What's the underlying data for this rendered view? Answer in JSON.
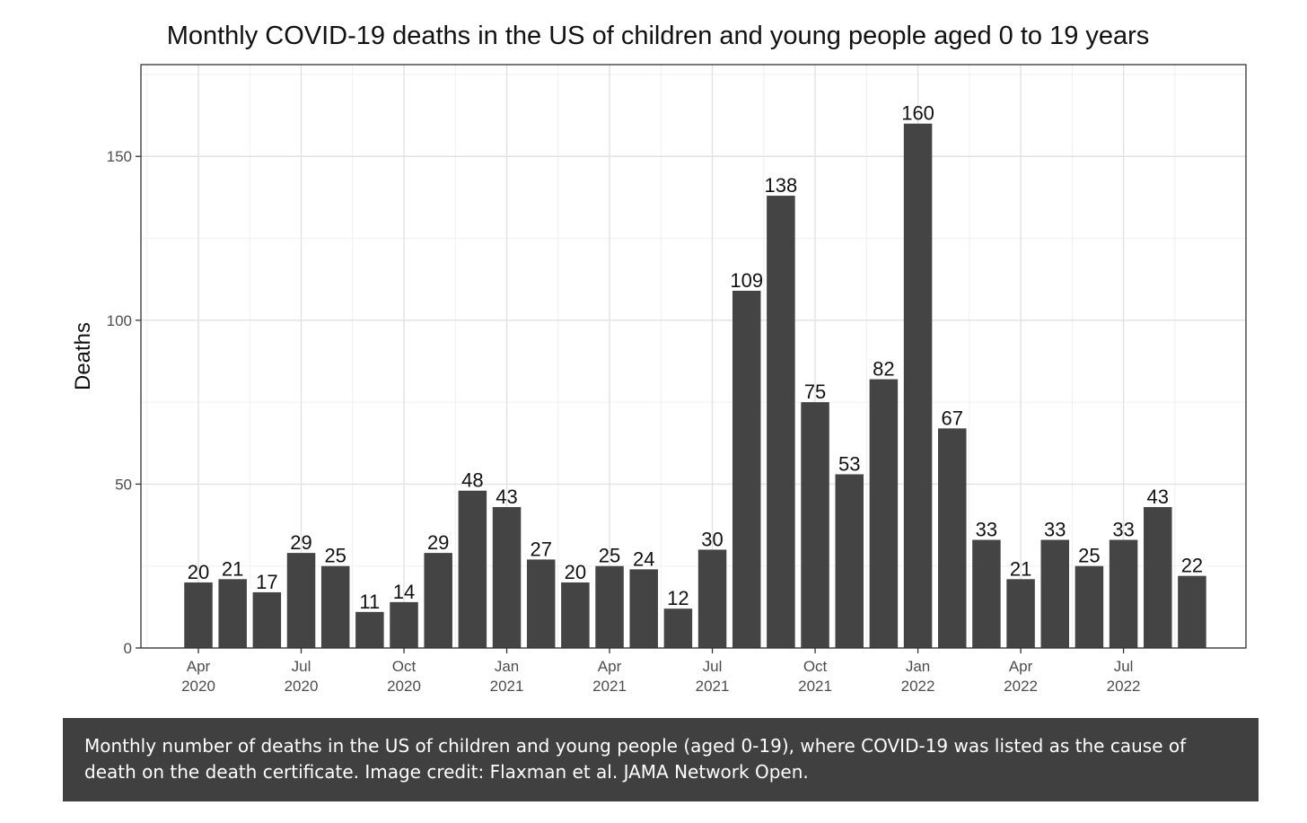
{
  "chart_data": {
    "type": "bar",
    "title": "Monthly COVID-19 deaths in the US of children and young people aged 0 to 19 years",
    "ylabel": "Deaths",
    "xlabel": "",
    "ylim": [
      0,
      178
    ],
    "yticks": [
      0,
      50,
      100,
      150
    ],
    "grid": true,
    "bar_color": "#444444",
    "categories": [
      "Apr 2020",
      "May 2020",
      "Jun 2020",
      "Jul 2020",
      "Aug 2020",
      "Sep 2020",
      "Oct 2020",
      "Nov 2020",
      "Dec 2020",
      "Jan 2021",
      "Feb 2021",
      "Mar 2021",
      "Apr 2021",
      "May 2021",
      "Jun 2021",
      "Jul 2021",
      "Aug 2021",
      "Sep 2021",
      "Oct 2021",
      "Nov 2021",
      "Dec 2021",
      "Jan 2022",
      "Feb 2022",
      "Mar 2022",
      "Apr 2022",
      "May 2022",
      "Jun 2022",
      "Jul 2022",
      "Aug 2022",
      "Sep 2022"
    ],
    "values": [
      20,
      21,
      17,
      29,
      25,
      11,
      14,
      29,
      48,
      43,
      27,
      20,
      25,
      24,
      12,
      30,
      109,
      138,
      75,
      53,
      82,
      160,
      67,
      33,
      21,
      33,
      25,
      33,
      43,
      22
    ],
    "xticks": [
      {
        "index": 0,
        "line1": "Apr",
        "line2": "2020"
      },
      {
        "index": 3,
        "line1": "Jul",
        "line2": "2020"
      },
      {
        "index": 6,
        "line1": "Oct",
        "line2": "2020"
      },
      {
        "index": 9,
        "line1": "Jan",
        "line2": "2021"
      },
      {
        "index": 12,
        "line1": "Apr",
        "line2": "2021"
      },
      {
        "index": 15,
        "line1": "Jul",
        "line2": "2021"
      },
      {
        "index": 18,
        "line1": "Oct",
        "line2": "2021"
      },
      {
        "index": 21,
        "line1": "Jan",
        "line2": "2022"
      },
      {
        "index": 24,
        "line1": "Apr",
        "line2": "2022"
      },
      {
        "index": 27,
        "line1": "Jul",
        "line2": "2022"
      }
    ]
  },
  "caption": "Monthly number of deaths in the US of children and young people (aged 0-19), where COVID-19 was listed as the cause of death on the death certificate. Image credit: Flaxman et al. JAMA Network Open."
}
